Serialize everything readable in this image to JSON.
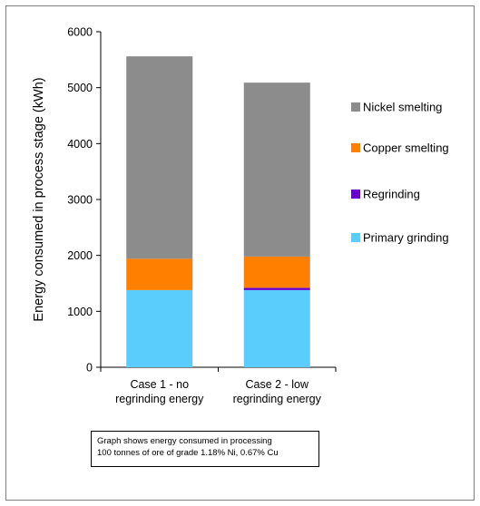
{
  "chart_data": {
    "type": "bar",
    "stacked": true,
    "categories": [
      "Case 1 - no regrinding energy",
      "Case 2 - low regrinding energy"
    ],
    "category_lines": [
      [
        "Case 1 - no",
        "regrinding energy"
      ],
      [
        "Case 2 - low",
        "regrinding energy"
      ]
    ],
    "series": [
      {
        "name": "Primary grinding",
        "color": "#5bcdfc",
        "values": [
          1380,
          1380
        ]
      },
      {
        "name": "Regrinding",
        "color": "#6600cc",
        "values": [
          0,
          40
        ]
      },
      {
        "name": "Copper smelting",
        "color": "#ff8000",
        "values": [
          560,
          560
        ]
      },
      {
        "name": "Nickel smelting",
        "color": "#8c8c8c",
        "values": [
          3620,
          3110
        ]
      }
    ],
    "legend_order": [
      "Nickel smelting",
      "Copper smelting",
      "Regrinding",
      "Primary grinding"
    ],
    "ylabel": "Energy consumed in process stage (kWh)",
    "xlabel": "",
    "ylim": [
      0,
      6000
    ],
    "yticks": [
      0,
      1000,
      2000,
      3000,
      4000,
      5000,
      6000
    ],
    "grid": false,
    "legend_position": "right"
  },
  "note": {
    "line1": "Graph shows energy consumed in processing",
    "line2": "100 tonnes of ore of grade 1.18% Ni, 0.67% Cu"
  }
}
